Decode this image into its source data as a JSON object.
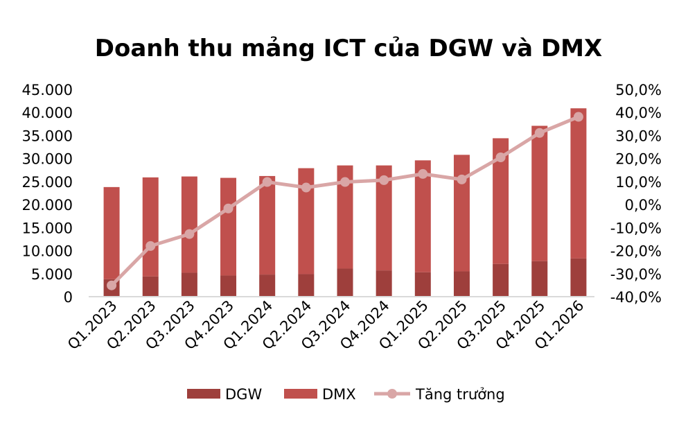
{
  "chart_data": {
    "type": "bar",
    "title": "Doanh thu mảng ICT của DGW và DMX",
    "categories": [
      "Q1.2023",
      "Q2.2023",
      "Q3.2023",
      "Q4.2023",
      "Q1.2024",
      "Q2.2024",
      "Q3.2024",
      "Q4.2024",
      "Q1.2025",
      "Q2.2025",
      "Q3.2025",
      "Q4.2025",
      "Q1.2026"
    ],
    "stacked": true,
    "series": [
      {
        "name": "DGW",
        "type": "bar",
        "axis": "left",
        "color": "#9e3f3c",
        "values": [
          3800,
          4400,
          5200,
          4600,
          4800,
          4900,
          6100,
          5700,
          5300,
          5500,
          7100,
          7700,
          8300
        ]
      },
      {
        "name": "DMX",
        "type": "bar",
        "axis": "left",
        "color": "#c0504d",
        "values": [
          20000,
          21500,
          20900,
          21200,
          21400,
          23000,
          22400,
          22800,
          24300,
          25300,
          27300,
          29400,
          32600
        ]
      },
      {
        "name": "Tăng trưởng",
        "type": "line",
        "axis": "right",
        "color": "#d9a6a6",
        "values": [
          -35.1,
          -18.0,
          -12.8,
          -1.7,
          9.8,
          7.4,
          9.8,
          10.6,
          13.3,
          10.9,
          20.5,
          31.1,
          38.1
        ]
      }
    ],
    "left_axis": {
      "ylim": [
        0,
        45000
      ],
      "ticks": [
        "0",
        "5.000",
        "10.000",
        "15.000",
        "20.000",
        "25.000",
        "30.000",
        "35.000",
        "40.000",
        "45.000"
      ]
    },
    "right_axis": {
      "ylim": [
        -40,
        50
      ],
      "ticks": [
        "-40,0%",
        "-30,0%",
        "-20,0%",
        "-10,0%",
        "0,0%",
        "10,0%",
        "20,0%",
        "30,0%",
        "40,0%",
        "50,0%"
      ]
    },
    "grid": false,
    "legend": "bottom"
  }
}
